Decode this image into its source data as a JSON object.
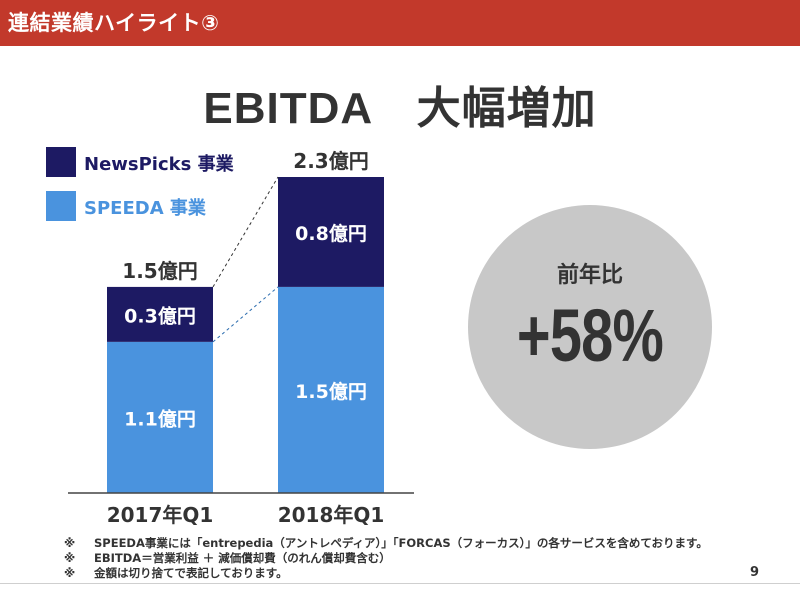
{
  "header": {
    "title": "連結業績ハイライト③"
  },
  "slide": {
    "title": "EBITDA　大幅増加"
  },
  "colors": {
    "header": "#c2392b",
    "newspicks": "#1d1a63",
    "speeda": "#4a93de",
    "circle": "#c8c8c8",
    "connector": "#2f6fb0"
  },
  "chart_data": {
    "type": "bar",
    "stacked": true,
    "title": "EBITDA",
    "unit": "億円",
    "categories": [
      "2017年Q1",
      "2018年Q1"
    ],
    "series": [
      {
        "name": "SPEEDA 事業",
        "values": [
          1.1,
          1.5
        ],
        "labels": [
          "1.1億円",
          "1.5億円"
        ]
      },
      {
        "name": "NewsPicks 事業",
        "values": [
          0.3,
          0.8
        ],
        "labels": [
          "0.3億円",
          "0.8億円"
        ]
      }
    ],
    "totals": [
      1.5,
      2.3
    ],
    "total_labels": [
      "1.5億円",
      "2.3億円"
    ],
    "legend": [
      "NewsPicks 事業",
      "SPEEDA 事業"
    ],
    "ylim": [
      0,
      2.3
    ],
    "grid": false
  },
  "growth": {
    "label": "前年比",
    "value": "+58%"
  },
  "notes": [
    {
      "mark": "※",
      "text": "SPEEDA事業には「entrepedia（アントレペディア）」「FORCAS（フォーカス）」の各サービスを含めております。"
    },
    {
      "mark": "※",
      "text": "EBITDA＝営業利益 ＋ 減価償却費（のれん償却費含む）"
    },
    {
      "mark": "※",
      "text": "金額は切り捨てで表記しております。"
    }
  ],
  "page": {
    "number": "9"
  }
}
